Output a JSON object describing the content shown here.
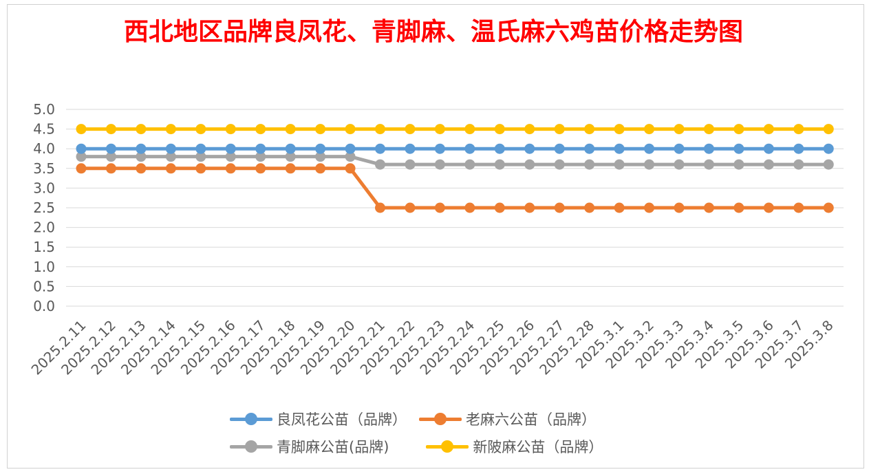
{
  "chart_data": {
    "type": "line",
    "title": "西北地区品牌良凤花、青脚麻、温氏麻六鸡苗价格走势图",
    "xlabel": "",
    "ylabel": "",
    "ylim": [
      0,
      5
    ],
    "yticks": [
      "0.0",
      "0.5",
      "1.0",
      "1.5",
      "2.0",
      "2.5",
      "3.0",
      "3.5",
      "4.0",
      "4.5",
      "5.0"
    ],
    "grid": true,
    "legend_position": "bottom",
    "categories": [
      "2025.2.11",
      "2025.2.12",
      "2025.2.13",
      "2025.2.14",
      "2025.2.15",
      "2025.2.16",
      "2025.2.17",
      "2025.2.18",
      "2025.2.19",
      "2025.2.20",
      "2025.2.21",
      "2025.2.22",
      "2025.2.23",
      "2025.2.24",
      "2025.2.25",
      "2025.2.26",
      "2025.2.27",
      "2025.2.28",
      "2025.3.1",
      "2025.3.2",
      "2025.3.3",
      "2025.3.4",
      "2025.3.5",
      "2025.3.6",
      "2025.3.7",
      "2025.3.8"
    ],
    "series": [
      {
        "name": "良凤花公苗（品牌）",
        "color": "#5B9BD5",
        "values": [
          4.0,
          4.0,
          4.0,
          4.0,
          4.0,
          4.0,
          4.0,
          4.0,
          4.0,
          4.0,
          4.0,
          4.0,
          4.0,
          4.0,
          4.0,
          4.0,
          4.0,
          4.0,
          4.0,
          4.0,
          4.0,
          4.0,
          4.0,
          4.0,
          4.0,
          4.0
        ]
      },
      {
        "name": "老麻六公苗（品牌）",
        "color": "#ED7D31",
        "values": [
          3.5,
          3.5,
          3.5,
          3.5,
          3.5,
          3.5,
          3.5,
          3.5,
          3.5,
          3.5,
          2.5,
          2.5,
          2.5,
          2.5,
          2.5,
          2.5,
          2.5,
          2.5,
          2.5,
          2.5,
          2.5,
          2.5,
          2.5,
          2.5,
          2.5,
          2.5
        ]
      },
      {
        "name": "青脚麻公苗(品牌)",
        "color": "#A5A5A5",
        "values": [
          3.8,
          3.8,
          3.8,
          3.8,
          3.8,
          3.8,
          3.8,
          3.8,
          3.8,
          3.8,
          3.6,
          3.6,
          3.6,
          3.6,
          3.6,
          3.6,
          3.6,
          3.6,
          3.6,
          3.6,
          3.6,
          3.6,
          3.6,
          3.6,
          3.6,
          3.6
        ]
      },
      {
        "name": "新陂麻公苗（品牌）",
        "color": "#FFC000",
        "values": [
          4.5,
          4.5,
          4.5,
          4.5,
          4.5,
          4.5,
          4.5,
          4.5,
          4.5,
          4.5,
          4.5,
          4.5,
          4.5,
          4.5,
          4.5,
          4.5,
          4.5,
          4.5,
          4.5,
          4.5,
          4.5,
          4.5,
          4.5,
          4.5,
          4.5,
          4.5
        ]
      }
    ],
    "draw_order": [
      2,
      1,
      0,
      3
    ],
    "legend_rows": [
      [
        0,
        1
      ],
      [
        2,
        3
      ]
    ]
  }
}
